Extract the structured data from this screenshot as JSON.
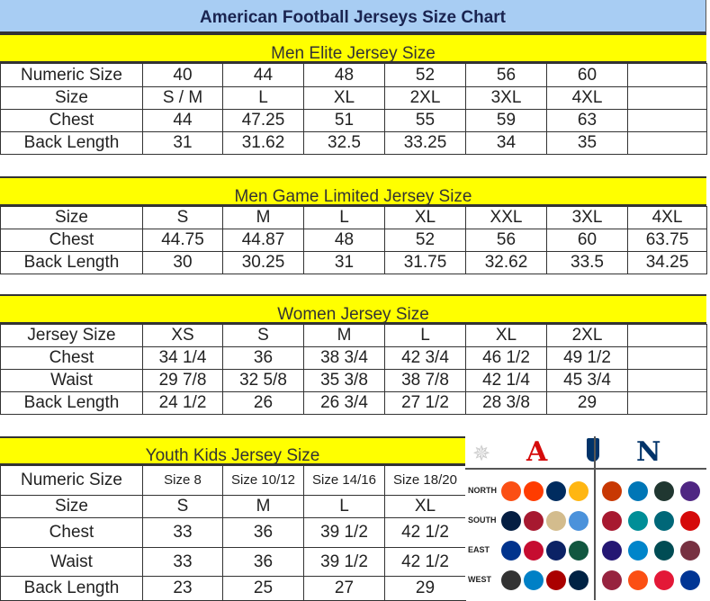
{
  "title": "American Football Jerseys Size Chart",
  "colors": {
    "header": "#a8cdf3",
    "band": "#ffff00"
  },
  "sections": [
    {
      "name": "Men Elite Jersey Size",
      "cols": 7,
      "rows": [
        [
          "Numeric Size",
          "40",
          "44",
          "48",
          "52",
          "56",
          "60",
          ""
        ],
        [
          "Size",
          "S / M",
          "L",
          "XL",
          "2XL",
          "3XL",
          "4XL",
          ""
        ],
        [
          "Chest",
          "44",
          "47.25",
          "51",
          "55",
          "59",
          "63",
          ""
        ],
        [
          "Back Length",
          "31",
          "31.62",
          "32.5",
          "33.25",
          "34",
          "35",
          ""
        ]
      ]
    },
    {
      "name": "Men Game Limited Jersey Size",
      "rows": [
        [
          "Size",
          "S",
          "M",
          "L",
          "XL",
          "XXL",
          "3XL",
          "4XL"
        ],
        [
          "Chest",
          "44.75",
          "44.87",
          "48",
          "52",
          "56",
          "60",
          "63.75"
        ],
        [
          "Back Length",
          "30",
          "30.25",
          "31",
          "31.75",
          "32.62",
          "33.5",
          "34.25"
        ]
      ]
    },
    {
      "name": "Women Jersey Size",
      "rows": [
        [
          "Jersey Size",
          "XS",
          "S",
          "M",
          "L",
          "XL",
          "2XL",
          ""
        ],
        [
          "Chest",
          "34 1/4",
          "36",
          "38 3/4",
          "42 3/4",
          "46 1/2",
          "49 1/2",
          ""
        ],
        [
          "Waist",
          "29 7/8",
          "32 5/8",
          "35 3/8",
          "38 7/8",
          "42 1/4",
          "45 3/4",
          ""
        ],
        [
          "Back Length",
          "24 1/2",
          "26",
          "26 3/4",
          "27 1/2",
          "28 3/8",
          "29",
          ""
        ]
      ]
    },
    {
      "name": "Youth Kids Jersey Size",
      "rows": [
        [
          "Numeric Size",
          "Size 8",
          "Size 10/12",
          "Size 14/16",
          "Size 18/20"
        ],
        [
          "Size",
          "S",
          "M",
          "L",
          "XL"
        ],
        [
          "Chest",
          "33",
          "36",
          "39 1/2",
          "42 1/2"
        ],
        [
          "Waist",
          "33",
          "36",
          "39 1/2",
          "42 1/2"
        ],
        [
          "Back Length",
          "23",
          "25",
          "27",
          "29"
        ]
      ]
    }
  ],
  "logos": {
    "afc": "A",
    "nfc": "N",
    "divisions": [
      "NORTH",
      "SOUTH",
      "EAST",
      "WEST"
    ],
    "afc_colors": [
      [
        "#fb4f14",
        "#ff3c00",
        "#002c5f",
        "#ffb612"
      ],
      [
        "#041e42",
        "#a71930",
        "#d3bc8d",
        "#4b92db"
      ],
      [
        "#00338d",
        "#c60c30",
        "#0b2265",
        "#125740"
      ],
      [
        "#333333",
        "#0080c6",
        "#aa0000",
        "#002244"
      ]
    ],
    "nfc_colors": [
      [
        "#c83803",
        "#0076b6",
        "#203731",
        "#4f2683"
      ],
      [
        "#a71930",
        "#008e97",
        "#006778",
        "#d50a0a"
      ],
      [
        "#241773",
        "#0085ca",
        "#004c54",
        "#773141"
      ],
      [
        "#97233f",
        "#fb4f14",
        "#e31837",
        "#003594"
      ]
    ]
  }
}
